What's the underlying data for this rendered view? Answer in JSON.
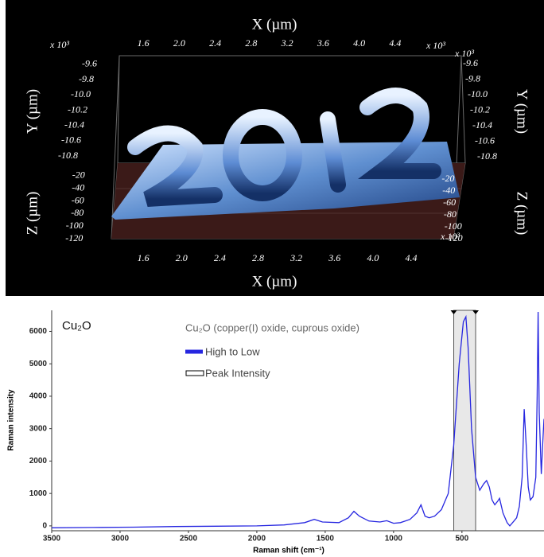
{
  "chart_data": [
    {
      "type": "surface3d",
      "x_label": "X (µm)",
      "y_label": "Y (µm)",
      "z_label": "Z (µm)",
      "multiplier": "x 10³",
      "xlim": [
        1.4,
        4.6
      ],
      "xticks": [
        1.6,
        {
          "value": 2,
          "label": "2.0"
        },
        2.4,
        2.8,
        3.2,
        3.6,
        {
          "value": 4,
          "label": "4.0"
        },
        4.4
      ],
      "ylim": [
        -9.5,
        -10.9
      ],
      "yticks": [
        -9.6,
        -9.8,
        {
          "value": -10,
          "label": "-10.0"
        },
        -10.2,
        -10.4,
        -10.6,
        -10.8
      ],
      "zlim": [
        -10,
        -130
      ],
      "zticks": [
        -20,
        -40,
        -60,
        -80,
        -100,
        -120
      ]
    },
    {
      "type": "line",
      "title": "Cu₂O",
      "subtitle": "Cu₂O (copper(I) oxide, cuprous oxide)",
      "x_label": "Raman shift (cm⁻¹)",
      "y_label": "Raman intensity",
      "x": [
        3500,
        3200,
        2900,
        2600,
        2300,
        2000,
        1800,
        1650,
        1580,
        1520,
        1400,
        1330,
        1290,
        1250,
        1180,
        1100,
        1050,
        1000,
        950,
        880,
        830,
        800,
        770,
        740,
        700,
        650,
        600,
        560,
        520,
        490,
        471,
        455,
        430,
        400,
        370,
        340,
        320,
        300,
        280,
        260,
        240,
        225,
        200,
        170,
        150,
        120,
        100,
        80,
        60,
        45,
        30,
        15,
        0,
        -20,
        -40,
        -50,
        -57,
        -65,
        -80,
        -90,
        -100
      ],
      "series": [
        {
          "name": "High to Low",
          "color": "#2626e0",
          "values": [
            -60,
            -50,
            -40,
            -20,
            -10,
            0,
            30,
            100,
            200,
            120,
            100,
            250,
            450,
            300,
            150,
            120,
            160,
            80,
            100,
            200,
            400,
            650,
            300,
            250,
            300,
            500,
            1000,
            2500,
            5000,
            6300,
            6450,
            5500,
            3000,
            1500,
            1100,
            1300,
            1400,
            1200,
            800,
            650,
            750,
            850,
            400,
            100,
            0,
            150,
            250,
            600,
            1500,
            3600,
            2500,
            1200,
            800,
            900,
            1500,
            4000,
            6600,
            3500,
            1600,
            2500,
            3300
          ]
        }
      ],
      "highlight": {
        "name": "Peak Intensity",
        "range": [
          560,
          400
        ]
      },
      "xlim": [
        3500,
        -100
      ],
      "xticks": [
        3500,
        3000,
        2500,
        2000,
        1500,
        1000,
        500
      ],
      "ylim": [
        -150,
        6650
      ],
      "yticks": [
        0,
        1000,
        2000,
        3000,
        4000,
        5000,
        6000
      ]
    }
  ]
}
